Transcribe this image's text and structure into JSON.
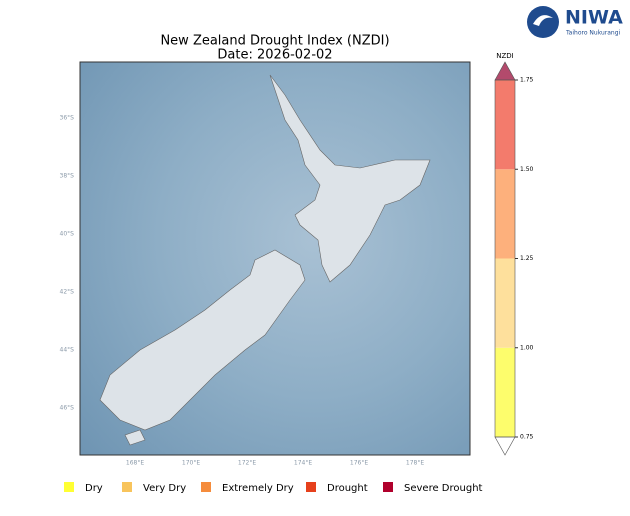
{
  "header": {
    "title": "New Zealand Drought Index (NZDI)",
    "subtitle": "Date: 2026-02-02",
    "logo": "NIWA",
    "logo_tagline": "Taihoro Nukurangi"
  },
  "map": {
    "lat_labels": [
      "36°S",
      "38°S",
      "40°S",
      "42°S",
      "44°S",
      "46°S"
    ],
    "lon_labels": [
      "168°E",
      "170°E",
      "172°E",
      "174°E",
      "176°E",
      "178°E"
    ]
  },
  "colorbar": {
    "label": "NZDI",
    "ticks": [
      0.75,
      {
        "value": 1,
        "label": "1.00"
      },
      1.25,
      {
        "value": 1.5,
        "label": "1.50"
      },
      1.75
    ],
    "colors": [
      "#fdfd6c",
      "#fee09c",
      "#fdb07c",
      "#f37b6c"
    ],
    "over_color": "#b34a6c",
    "under_color": "#ffffff"
  },
  "legend": [
    {
      "name": "Dry",
      "color": "#ffff33"
    },
    {
      "name": "Very Dry",
      "color": "#f8c45c"
    },
    {
      "name": "Extremely Dry",
      "color": "#f58c3c"
    },
    {
      "name": "Drought",
      "color": "#e6401c"
    },
    {
      "name": "Severe Drought",
      "color": "#b0002c"
    }
  ]
}
